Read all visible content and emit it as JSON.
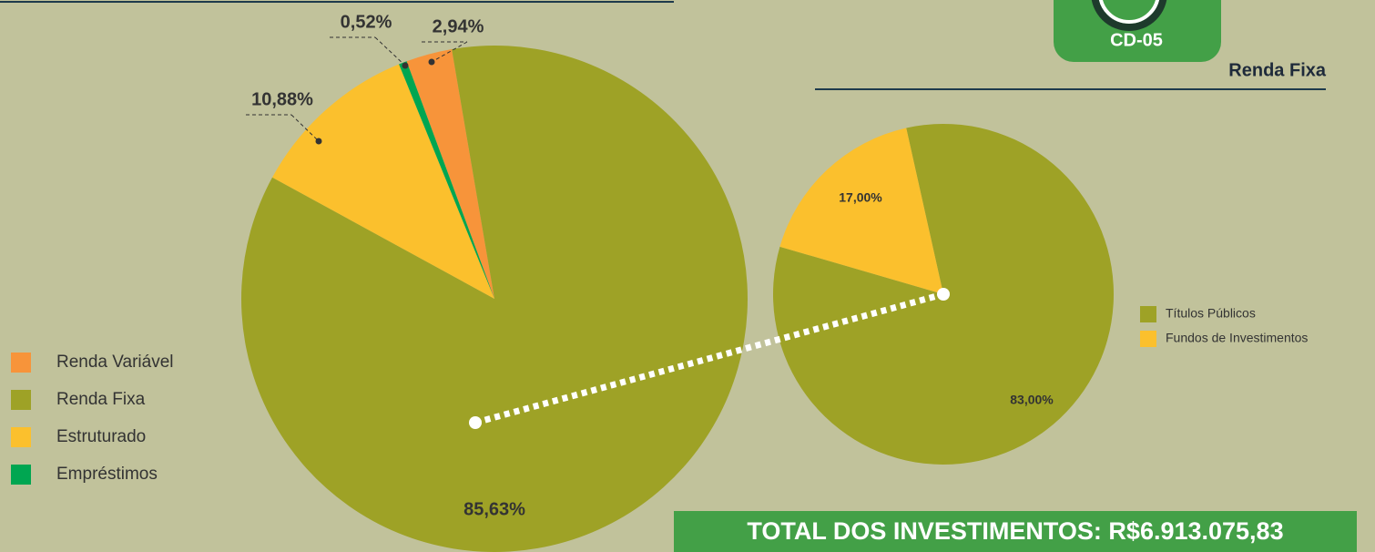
{
  "badge": "CD-05",
  "total": "TOTAL DOS INVESTIMENTOS: R$6.913.075,83",
  "chart_data": [
    {
      "type": "pie",
      "categories": [
        "Renda Variável",
        "Renda Fixa",
        "Estruturado",
        "Empréstimos"
      ],
      "values": [
        2.94,
        85.63,
        10.88,
        0.52
      ],
      "value_labels": [
        "2,94%",
        "85,63%",
        "10,88%",
        "0,52%"
      ],
      "colors": [
        "#f7943a",
        "#9ea226",
        "#fbc02d",
        "#00a651"
      ]
    },
    {
      "type": "pie",
      "title": "Renda Fixa",
      "categories": [
        "Títulos Públicos",
        "Fundos de Investimentos"
      ],
      "values": [
        83,
        17
      ],
      "value_labels": [
        "83,00%",
        "17,00%"
      ],
      "colors": [
        "#9ea226",
        "#fbc02d"
      ]
    }
  ]
}
